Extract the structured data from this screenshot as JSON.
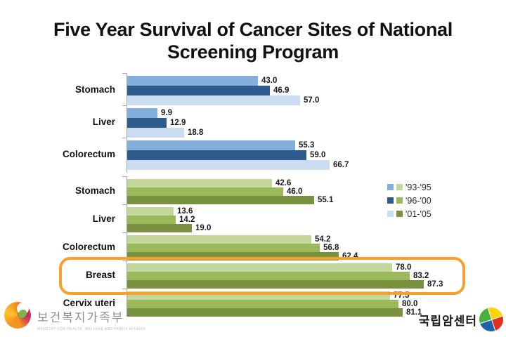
{
  "title": "Five Year Survival of Cancer Sites of National Screening Program",
  "title_lines": [
    "Five Year Survival of Cancer Sites of National",
    "Screening Program"
  ],
  "chart_data": {
    "type": "bar",
    "orientation": "horizontal",
    "xlim": [
      0,
      100
    ],
    "grid": false,
    "legend_position": "right",
    "series_period_labels": [
      "'93-'95",
      "'96-'00",
      "'01-'05"
    ],
    "legend": [
      {
        "label": "'93-'95",
        "blue_color": "#84AEDC",
        "green_color": "#C3D69B"
      },
      {
        "label": "'96-'00",
        "blue_color": "#2E5A8D",
        "green_color": "#99B95A"
      },
      {
        "label": "'01-'05",
        "blue_color": "#CBDCF0",
        "green_color": "#7A9140"
      }
    ],
    "charts": [
      {
        "id": "blue",
        "series_colors": [
          "#84AEDC",
          "#2E5A8D",
          "#CBDCF0"
        ],
        "groups": [
          {
            "category": "Stomach",
            "values": [
              43.0,
              46.9,
              57.0
            ]
          },
          {
            "category": "Liver",
            "values": [
              9.9,
              12.9,
              18.8
            ]
          },
          {
            "category": "Colorectum",
            "values": [
              55.3,
              59.0,
              66.7
            ]
          }
        ]
      },
      {
        "id": "green",
        "series_colors": [
          "#C3D69B",
          "#99B95A",
          "#7A9140"
        ],
        "groups": [
          {
            "category": "Stomach",
            "values": [
              42.6,
              46.0,
              55.1
            ]
          },
          {
            "category": "Liver",
            "values": [
              13.6,
              14.2,
              19.0
            ]
          },
          {
            "category": "Colorectum",
            "values": [
              54.2,
              56.8,
              62.4
            ]
          },
          {
            "category": "Breast",
            "values": [
              78.0,
              83.2,
              87.3
            ]
          },
          {
            "category": "Cervix uteri",
            "values": [
              77.5,
              80.0,
              81.1
            ]
          }
        ]
      }
    ],
    "highlight": {
      "category": "Breast",
      "color": "#F5A12B"
    }
  },
  "footer": {
    "ministry_text": "보건복지가족부",
    "ministry_subtext": "MINISTRY FOR HEALTH, WELFARE AND FAMILY AFFAIRS",
    "ncc_text": "국립암센터"
  }
}
